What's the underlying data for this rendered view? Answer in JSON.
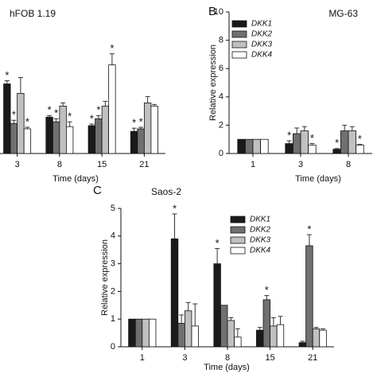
{
  "chart_data": [
    {
      "type": "bar",
      "title": "hFOB 1.19",
      "xlabel": "Time (days)",
      "categories": [
        "3",
        "8",
        "15",
        "21"
      ],
      "ylim": [
        0,
        4.6
      ],
      "legend": false,
      "series": [
        {
          "name": "DKK1",
          "color": "#1a1a1a",
          "values": [
            2.2,
            1.15,
            0.88,
            0.7
          ],
          "errors": [
            0.1,
            0.05,
            0.05,
            0.1
          ],
          "sig": [
            "*",
            "*",
            "*",
            "*"
          ]
        },
        {
          "name": "DKK2",
          "color": "#707070",
          "values": [
            0.95,
            1.0,
            1.1,
            0.78
          ],
          "errors": [
            0.1,
            0.1,
            0.1,
            0.05
          ],
          "sig": [
            "*",
            "*",
            "*",
            "*"
          ]
        },
        {
          "name": "DKK3",
          "color": "#c0c0c0",
          "values": [
            1.9,
            1.5,
            1.5,
            1.6
          ],
          "errors": [
            0.5,
            0.1,
            0.15,
            0.2
          ],
          "sig": [
            null,
            null,
            null,
            null
          ]
        },
        {
          "name": "DKK4",
          "color": "#ffffff",
          "values": [
            0.78,
            0.85,
            2.8,
            1.5
          ],
          "errors": [
            0.05,
            0.15,
            0.35,
            0.05
          ],
          "sig": [
            "*",
            "*",
            "*",
            null
          ]
        }
      ]
    },
    {
      "type": "bar",
      "panel_label": "B",
      "title": "MG-63",
      "ylabel": "Relative expression",
      "xlabel": "Time (days)",
      "categories": [
        "1",
        "3",
        "8"
      ],
      "ylim": [
        0,
        10
      ],
      "yticks": [
        0,
        2,
        4,
        6,
        8,
        10
      ],
      "legend": true,
      "series": [
        {
          "name": "DKK1",
          "color": "#1a1a1a",
          "values": [
            1,
            0.7,
            0.3
          ],
          "errors": [
            0,
            0.2,
            0.05
          ],
          "sig": [
            null,
            "*",
            "*"
          ]
        },
        {
          "name": "DKK2",
          "color": "#707070",
          "values": [
            1,
            1.4,
            1.6
          ],
          "errors": [
            0,
            0.4,
            0.4
          ],
          "sig": [
            null,
            null,
            null
          ]
        },
        {
          "name": "DKK3",
          "color": "#c0c0c0",
          "values": [
            1,
            1.6,
            1.6
          ],
          "errors": [
            0,
            0.3,
            0.3
          ],
          "sig": [
            null,
            null,
            null
          ]
        },
        {
          "name": "DKK4",
          "color": "#ffffff",
          "values": [
            1,
            0.6,
            0.6
          ],
          "errors": [
            0,
            0.1,
            0.05
          ],
          "sig": [
            null,
            "*",
            "*"
          ]
        }
      ]
    },
    {
      "type": "bar",
      "panel_label": "C",
      "title": "Saos-2",
      "ylabel": "Relative expression",
      "xlabel": "Time (days)",
      "categories": [
        "1",
        "3",
        "8",
        "15",
        "21"
      ],
      "ylim": [
        0,
        5
      ],
      "yticks": [
        0,
        1,
        2,
        3,
        4,
        5
      ],
      "legend": true,
      "series": [
        {
          "name": "DKK1",
          "color": "#1a1a1a",
          "values": [
            1,
            3.9,
            3.0,
            0.6,
            0.15
          ],
          "errors": [
            0,
            0.9,
            0.55,
            0.1,
            0.05
          ],
          "sig": [
            null,
            "*",
            "*",
            null,
            null
          ]
        },
        {
          "name": "DKK2",
          "color": "#707070",
          "values": [
            1,
            0.85,
            1.5,
            1.7,
            3.65
          ],
          "errors": [
            0,
            0.3,
            0,
            0.15,
            0.4
          ],
          "sig": [
            null,
            null,
            null,
            "*",
            "*"
          ]
        },
        {
          "name": "DKK3",
          "color": "#c0c0c0",
          "values": [
            1,
            1.3,
            0.95,
            0.75,
            0.65
          ],
          "errors": [
            0,
            0.3,
            0.1,
            0.3,
            0.05
          ],
          "sig": [
            null,
            null,
            null,
            null,
            null
          ]
        },
        {
          "name": "DKK4",
          "color": "#ffffff",
          "values": [
            1,
            0.75,
            0.35,
            0.8,
            0.6
          ],
          "errors": [
            0,
            0.8,
            0.3,
            0.3,
            0.05
          ],
          "sig": [
            null,
            null,
            null,
            null,
            null
          ]
        }
      ]
    }
  ]
}
